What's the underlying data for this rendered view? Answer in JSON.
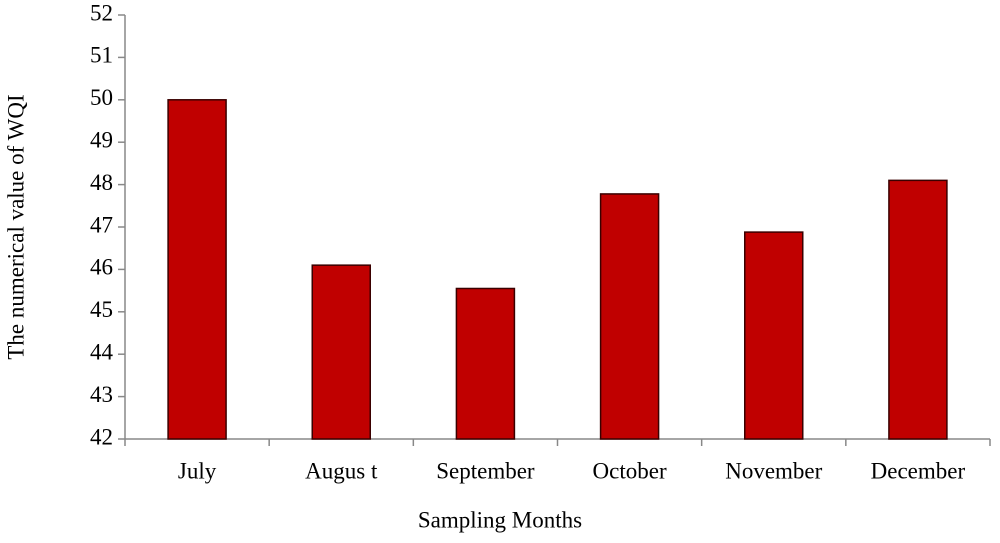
{
  "chart_data": {
    "type": "bar",
    "x_label": "Sampling Months",
    "y_label": "The numerical value of WQI",
    "categories": [
      "July",
      "Augus t",
      "September",
      "October",
      "November",
      "December"
    ],
    "values": [
      50,
      46.1,
      45.55,
      47.78,
      46.88,
      48.1
    ],
    "color": "#c00000",
    "ylim": [
      42,
      52
    ],
    "yticks": [
      42,
      43,
      44,
      45,
      46,
      47,
      48,
      49,
      50,
      51,
      52
    ],
    "grid": false
  }
}
